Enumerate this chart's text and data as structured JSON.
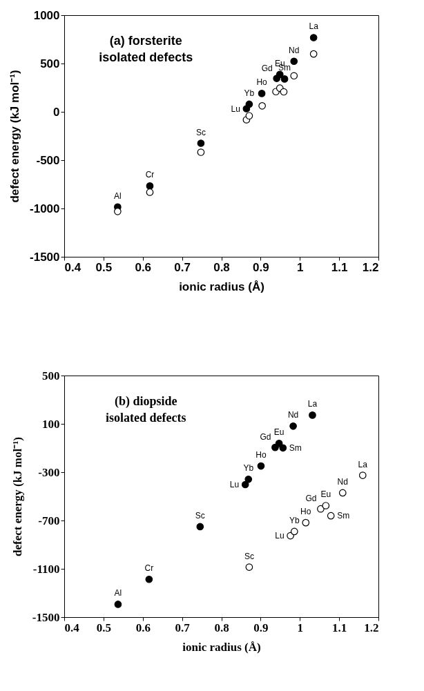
{
  "chart_data": [
    {
      "type": "scatter",
      "xlabel": "ionic radius (Å)",
      "ylabel": "defect energy (kJ mol⁻¹)",
      "xlim": [
        0.4,
        1.2
      ],
      "ylim": [
        -1500,
        1000
      ],
      "xticks": [
        0.4,
        0.5,
        0.6,
        0.7,
        0.8,
        0.9,
        1,
        1.1,
        1.2
      ],
      "yticks": [
        -1500,
        -1000,
        -500,
        0,
        500,
        1000
      ],
      "grid": false,
      "marker": "circle",
      "annotations": [
        "(a)  forsterite",
        "isolated  defects",
        {
          "text": "Al",
          "x": 0.536,
          "y": -985
        },
        {
          "text": "Cr",
          "x": 0.618,
          "y": -767
        },
        {
          "text": "Sc",
          "x": 0.748,
          "y": -325
        },
        {
          "text": "Lu",
          "x": 0.864,
          "y": 32
        },
        {
          "text": "Yb",
          "x": 0.871,
          "y": 79
        },
        {
          "text": "Ho",
          "x": 0.903,
          "y": 190
        },
        {
          "text": "Gd",
          "x": 0.941,
          "y": 346
        },
        {
          "text": "Eu",
          "x": 0.949,
          "y": 387
        },
        {
          "text": "Sm",
          "x": 0.961,
          "y": 340
        },
        {
          "text": "Nd",
          "x": 0.985,
          "y": 523
        },
        {
          "text": "La",
          "x": 1.035,
          "y": 768
        }
      ],
      "series": [
        {
          "color": "#000000",
          "x": [
            0.536,
            0.618,
            0.748,
            0.864,
            0.871,
            0.903,
            0.941,
            0.949,
            0.961,
            0.985,
            1.035
          ],
          "values": [
            -985,
            -767,
            -325,
            32,
            79,
            190,
            346,
            387,
            340,
            523,
            768
          ]
        },
        {
          "color": "#ffffff",
          "x": [
            0.536,
            0.618,
            0.748,
            0.864,
            0.871,
            0.904,
            0.939,
            0.949,
            0.959,
            0.985,
            1.035
          ],
          "values": [
            -1031,
            -832,
            -418,
            -82,
            -41,
            62,
            209,
            245,
            207,
            373,
            599
          ]
        }
      ]
    },
    {
      "type": "scatter",
      "xlabel": "ionic radius (Å)",
      "ylabel": "defect energy (kJ mol⁻¹)",
      "xlim": [
        0.4,
        1.2
      ],
      "ylim": [
        -1500,
        500
      ],
      "xticks": [
        0.4,
        0.5,
        0.6,
        0.7,
        0.8,
        0.9,
        1,
        1.1,
        1.2
      ],
      "yticks": [
        -1500,
        -1100,
        -700,
        -300,
        100,
        500
      ],
      "grid": false,
      "marker": "circle",
      "annotations": [
        "(b)   diopside",
        "isolated    defects",
        {
          "text": "Al",
          "x": 0.537,
          "y": -1394
        },
        {
          "text": "Cr",
          "x": 0.616,
          "y": -1187
        },
        {
          "text": "Sc",
          "x": 0.746,
          "y": -751
        },
        {
          "text": "Lu",
          "x": 0.861,
          "y": -403
        },
        {
          "text": "Yb",
          "x": 0.869,
          "y": -359
        },
        {
          "text": "Ho",
          "x": 0.901,
          "y": -249
        },
        {
          "text": "Gd",
          "x": 0.937,
          "y": -95
        },
        {
          "text": "Eu",
          "x": 0.947,
          "y": -62
        },
        {
          "text": "Sm",
          "x": 0.957,
          "y": -99
        },
        {
          "text": "Nd",
          "x": 0.983,
          "y": 81
        },
        {
          "text": "La",
          "x": 1.032,
          "y": 172
        },
        {
          "text": "Sc",
          "x": 0.871,
          "y": -1086
        },
        {
          "text": "Lu",
          "x": 0.976,
          "y": -826
        },
        {
          "text": "Yb",
          "x": 0.986,
          "y": -791
        },
        {
          "text": "Ho",
          "x": 1.015,
          "y": -718
        },
        {
          "text": "Gd",
          "x": 1.053,
          "y": -604
        },
        {
          "text": "Eu",
          "x": 1.066,
          "y": -577
        },
        {
          "text": "Sm",
          "x": 1.079,
          "y": -661
        },
        {
          "text": "Nd",
          "x": 1.109,
          "y": -471
        },
        {
          "text": "La",
          "x": 1.16,
          "y": -326
        }
      ],
      "series": [
        {
          "color": "#000000",
          "x": [
            0.537,
            0.616,
            0.746,
            0.861,
            0.869,
            0.901,
            0.937,
            0.947,
            0.957,
            0.983,
            1.032
          ],
          "values": [
            -1394,
            -1187,
            -751,
            -403,
            -359,
            -249,
            -95,
            -62,
            -99,
            81,
            172
          ]
        },
        {
          "color": "#ffffff",
          "x": [
            0.871,
            0.976,
            0.986,
            1.015,
            1.053,
            1.066,
            1.079,
            1.109,
            1.16
          ],
          "values": [
            -1086,
            -826,
            -791,
            -718,
            -604,
            -577,
            -661,
            -471,
            -326
          ]
        }
      ]
    }
  ]
}
